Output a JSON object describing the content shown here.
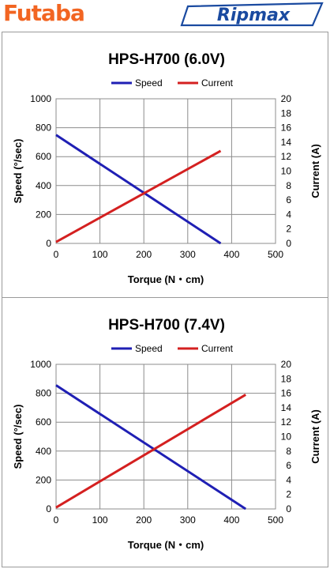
{
  "brands": {
    "left": "Futaba",
    "right": "Ripmax"
  },
  "colors": {
    "futaba_orange": "#f26522",
    "ripmax_blue": "#1a4aa0",
    "speed_line": "#1f1fb4",
    "current_line": "#d42020",
    "grid": "#8c8c8c"
  },
  "chart_data": [
    {
      "type": "line",
      "title": "HPS-H700 (6.0V)",
      "xlabel": "Torque  (N・cm)",
      "ylabel": "Speed (°/sec)",
      "y2label": "Current (A)",
      "xlim": [
        0,
        500
      ],
      "ylim": [
        0,
        1000
      ],
      "y2lim": [
        0,
        20
      ],
      "xticks": [
        "0",
        "100",
        "200",
        "300",
        "400",
        "500"
      ],
      "yticks": [
        "0",
        "200",
        "400",
        "600",
        "800",
        "1000"
      ],
      "y2ticks": [
        "0",
        "2",
        "4",
        "6",
        "8",
        "10",
        "12",
        "14",
        "16",
        "18",
        "20"
      ],
      "grid": true,
      "legend": "top",
      "series": [
        {
          "name": "Speed",
          "axis": "left",
          "color": "#1f1fb4",
          "x": [
            0,
            375
          ],
          "y": [
            750,
            0
          ]
        },
        {
          "name": "Current",
          "axis": "right",
          "color": "#d42020",
          "x": [
            0,
            375
          ],
          "y": [
            0.2,
            12.8
          ]
        }
      ]
    },
    {
      "type": "line",
      "title": "HPS-H700 (7.4V)",
      "xlabel": "Torque  (N・cm)",
      "ylabel": "Speed (°/sec)",
      "y2label": "Current (A)",
      "xlim": [
        0,
        500
      ],
      "ylim": [
        0,
        1000
      ],
      "y2lim": [
        0,
        20
      ],
      "xticks": [
        "0",
        "100",
        "200",
        "300",
        "400",
        "500"
      ],
      "yticks": [
        "0",
        "200",
        "400",
        "600",
        "800",
        "1000"
      ],
      "y2ticks": [
        "0",
        "2",
        "4",
        "6",
        "8",
        "10",
        "12",
        "14",
        "16",
        "18",
        "20"
      ],
      "grid": true,
      "legend": "top",
      "series": [
        {
          "name": "Speed",
          "axis": "left",
          "color": "#1f1fb4",
          "x": [
            0,
            432
          ],
          "y": [
            855,
            0
          ]
        },
        {
          "name": "Current",
          "axis": "right",
          "color": "#d42020",
          "x": [
            0,
            432
          ],
          "y": [
            0.2,
            15.8
          ]
        }
      ]
    }
  ]
}
